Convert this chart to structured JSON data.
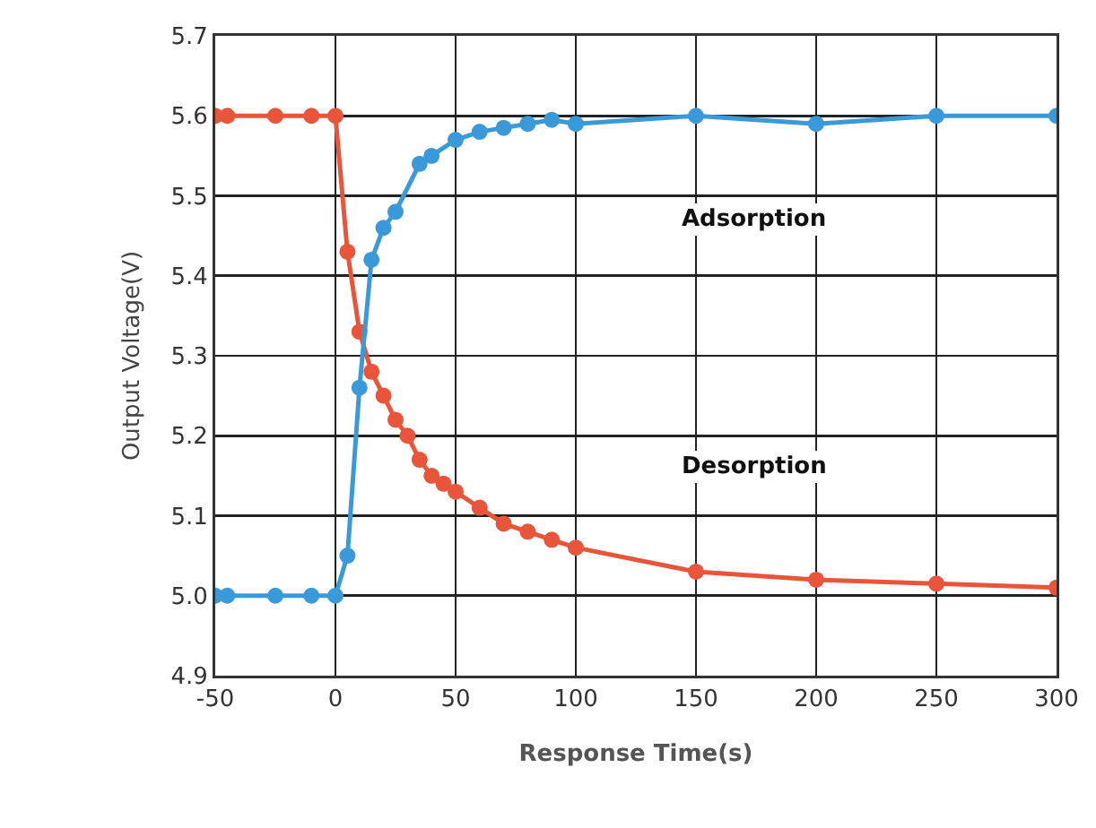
{
  "chart_data": {
    "type": "line",
    "xlabel": "Response Time(s)",
    "ylabel": "Output Voltage(V)",
    "xlim": [
      -50,
      300
    ],
    "xticks": [
      -50,
      0,
      50,
      100,
      150,
      200,
      250,
      300
    ],
    "ylim": [
      4.9,
      5.7
    ],
    "yticks": [
      {
        "value": 4.9,
        "label": "4.9"
      },
      {
        "value": 5.0,
        "label": "5.0"
      },
      {
        "value": 5.1,
        "label": "5.1"
      },
      {
        "value": 5.2,
        "label": "5.2"
      },
      {
        "value": 5.3,
        "label": "5.3"
      },
      {
        "value": 5.4,
        "label": "5.4"
      },
      {
        "value": 5.5,
        "label": "5.5"
      },
      {
        "value": 5.6,
        "label": "5.6"
      },
      {
        "value": 5.7,
        "label": "5.7"
      }
    ],
    "grid": true,
    "marker": "circle",
    "line_style": "solid",
    "series": [
      {
        "color": "#e8553a",
        "x": [
          -50,
          -45,
          -25,
          -10,
          0,
          5,
          10,
          15,
          20,
          25,
          30,
          35,
          40,
          45,
          50,
          60,
          70,
          80,
          90,
          100,
          150,
          200,
          250,
          300
        ],
        "values": [
          5.6,
          5.6,
          5.6,
          5.6,
          5.6,
          5.43,
          5.33,
          5.28,
          5.25,
          5.22,
          5.2,
          5.17,
          5.15,
          5.14,
          5.13,
          5.11,
          5.09,
          5.08,
          5.07,
          5.06,
          5.03,
          5.02,
          5.015,
          5.01
        ]
      },
      {
        "color": "#3a9ad9",
        "x": [
          -50,
          -45,
          -25,
          -10,
          0,
          5,
          10,
          15,
          20,
          25,
          35,
          40,
          50,
          60,
          70,
          80,
          90,
          100,
          150,
          200,
          250,
          300
        ],
        "values": [
          5.0,
          5.0,
          5.0,
          5.0,
          5.0,
          5.05,
          5.26,
          5.42,
          5.46,
          5.48,
          5.54,
          5.55,
          5.57,
          5.58,
          5.585,
          5.59,
          5.595,
          5.59,
          5.6,
          5.59,
          5.6,
          5.6
        ]
      }
    ],
    "annotations": [
      "Adsorption",
      "Desorption"
    ]
  }
}
